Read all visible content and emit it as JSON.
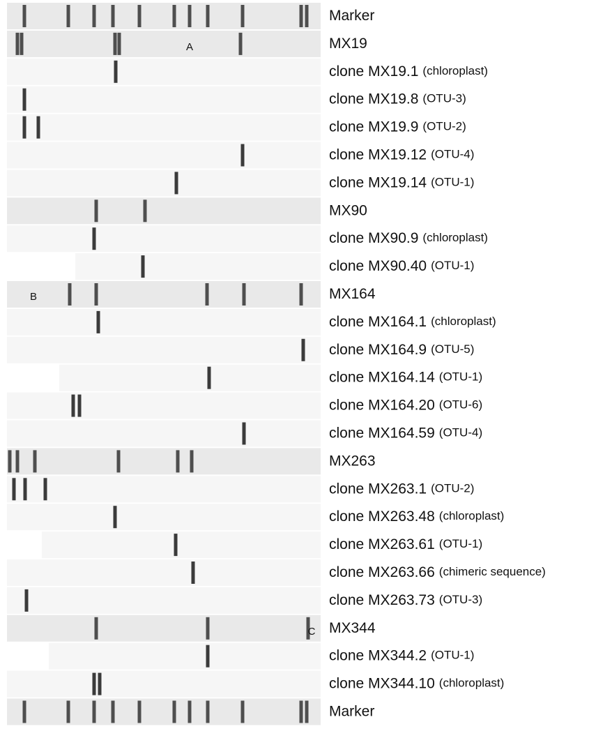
{
  "lanes": [
    {
      "label": "Marker"
    },
    {
      "label": "MX19"
    },
    {
      "label": "clone MX19.1",
      "note": "(chloroplast)"
    },
    {
      "label": "clone MX19.8",
      "note": "(OTU-3)"
    },
    {
      "label": "clone MX19.9",
      "note": "(OTU-2)"
    },
    {
      "label": "clone MX19.12",
      "note": "(OTU-4)"
    },
    {
      "label": "clone MX19.14",
      "note": "(OTU-1)"
    },
    {
      "label": "MX90"
    },
    {
      "label": "clone MX90.9",
      "note": "(chloroplast)"
    },
    {
      "label": "clone MX90.40",
      "note": "(OTU-1)"
    },
    {
      "label": "MX164"
    },
    {
      "label": "clone MX164.1",
      "note": "(chloroplast)"
    },
    {
      "label": "clone MX164.9",
      "note": "(OTU-5)"
    },
    {
      "label": "clone MX164.14",
      "note": "(OTU-1)"
    },
    {
      "label": "clone MX164.20",
      "note": "(OTU-6)"
    },
    {
      "label": "clone MX164.59",
      "note": "(OTU-4)"
    },
    {
      "label": "MX263"
    },
    {
      "label": "clone MX263.1",
      "note": "(OTU-2)"
    },
    {
      "label": "clone MX263.48",
      "note": "(chloroplast)"
    },
    {
      "label": "clone MX263.61",
      "note": "(OTU-1)"
    },
    {
      "label": "clone MX263.66",
      "note": "(chimeric sequence)"
    },
    {
      "label": "clone MX263.73",
      "note": "(OTU-3)"
    },
    {
      "label": "MX344"
    },
    {
      "label": "clone MX344.2",
      "note": "(OTU-1)"
    },
    {
      "label": "clone MX344.10",
      "note": "(chloroplast)"
    },
    {
      "label": "Marker"
    }
  ],
  "annotations": [
    "A",
    "B",
    "C"
  ]
}
